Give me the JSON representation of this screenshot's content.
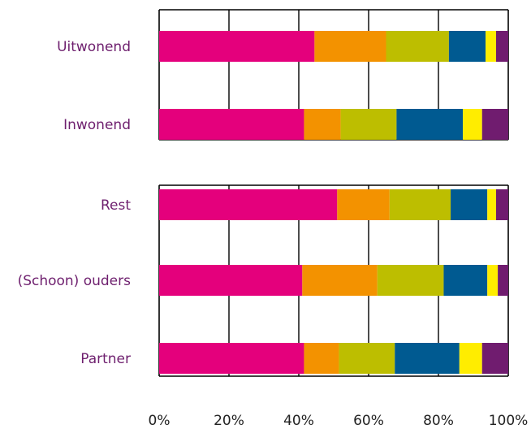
{
  "chart_data": [
    {
      "type": "bar",
      "orientation": "horizontal",
      "stacked": true,
      "normalized": true,
      "categories": [
        "Uitwonend",
        "Inwonend"
      ],
      "series": [
        {
          "color": "#e4007c",
          "values": [
            44.5,
            41.5
          ]
        },
        {
          "color": "#f39200",
          "values": [
            20.5,
            10.5
          ]
        },
        {
          "color": "#bdbe00",
          "values": [
            18.0,
            16.0
          ]
        },
        {
          "color": "#005a91",
          "values": [
            10.5,
            19.0
          ]
        },
        {
          "color": "#ffed00",
          "values": [
            3.0,
            5.5
          ]
        },
        {
          "color": "#701c6f",
          "values": [
            3.5,
            7.5
          ]
        }
      ],
      "xlim": [
        0,
        100
      ],
      "grid": true
    },
    {
      "type": "bar",
      "orientation": "horizontal",
      "stacked": true,
      "normalized": true,
      "categories": [
        "Rest",
        "(Schoon) ouders",
        "Partner"
      ],
      "series": [
        {
          "color": "#e4007c",
          "values": [
            51.0,
            41.0,
            41.5
          ]
        },
        {
          "color": "#f39200",
          "values": [
            15.0,
            21.5,
            10.0
          ]
        },
        {
          "color": "#bdbe00",
          "values": [
            17.5,
            19.0,
            16.0
          ]
        },
        {
          "color": "#005a91",
          "values": [
            10.5,
            12.5,
            18.5
          ]
        },
        {
          "color": "#ffed00",
          "values": [
            2.5,
            3.0,
            6.5
          ]
        },
        {
          "color": "#701c6f",
          "values": [
            3.5,
            3.0,
            7.5
          ]
        }
      ],
      "xlim": [
        0,
        100
      ],
      "xticks": [
        "0%",
        "20%",
        "40%",
        "60%",
        "80%",
        "100%"
      ],
      "grid": true
    }
  ]
}
